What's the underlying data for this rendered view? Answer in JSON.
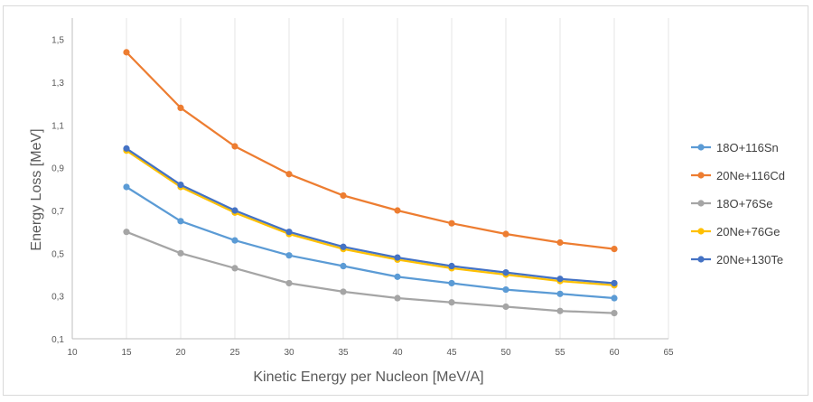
{
  "chart_data": {
    "type": "line",
    "title": "",
    "xlabel": "Kinetic Energy per Nucleon [MeV/A]",
    "ylabel": "Energy Loss [MeV]",
    "xlim": [
      10,
      65
    ],
    "ylim": [
      0.1,
      1.6
    ],
    "x_ticks": [
      "10",
      "15",
      "20",
      "25",
      "30",
      "35",
      "40",
      "45",
      "50",
      "55",
      "60",
      "65"
    ],
    "y_ticks": [
      "0,1",
      "0,3",
      "0,5",
      "0,7",
      "0,9",
      "1,1",
      "1,3",
      "1,5"
    ],
    "grid": "vertical",
    "legend_position": "right",
    "x": [
      15,
      20,
      25,
      30,
      35,
      40,
      45,
      50,
      55,
      60
    ],
    "series": [
      {
        "name": "18O+116Sn",
        "color": "#5b9bd5",
        "values": [
          0.81,
          0.65,
          0.56,
          0.49,
          0.44,
          0.39,
          0.36,
          0.33,
          0.31,
          0.29
        ]
      },
      {
        "name": "20Ne+116Cd",
        "color": "#ed7d31",
        "values": [
          1.44,
          1.18,
          1.0,
          0.87,
          0.77,
          0.7,
          0.64,
          0.59,
          0.55,
          0.52
        ]
      },
      {
        "name": "18O+76Se",
        "color": "#a5a5a5",
        "values": [
          0.6,
          0.5,
          0.43,
          0.36,
          0.32,
          0.29,
          0.27,
          0.25,
          0.23,
          0.22
        ]
      },
      {
        "name": "20Ne+76Ge",
        "color": "#ffc000",
        "values": [
          0.98,
          0.81,
          0.69,
          0.59,
          0.52,
          0.47,
          0.43,
          0.4,
          0.37,
          0.35
        ]
      },
      {
        "name": "20Ne+130Te",
        "color": "#4472c4",
        "values": [
          0.99,
          0.82,
          0.7,
          0.6,
          0.53,
          0.48,
          0.44,
          0.41,
          0.38,
          0.36
        ]
      }
    ]
  }
}
